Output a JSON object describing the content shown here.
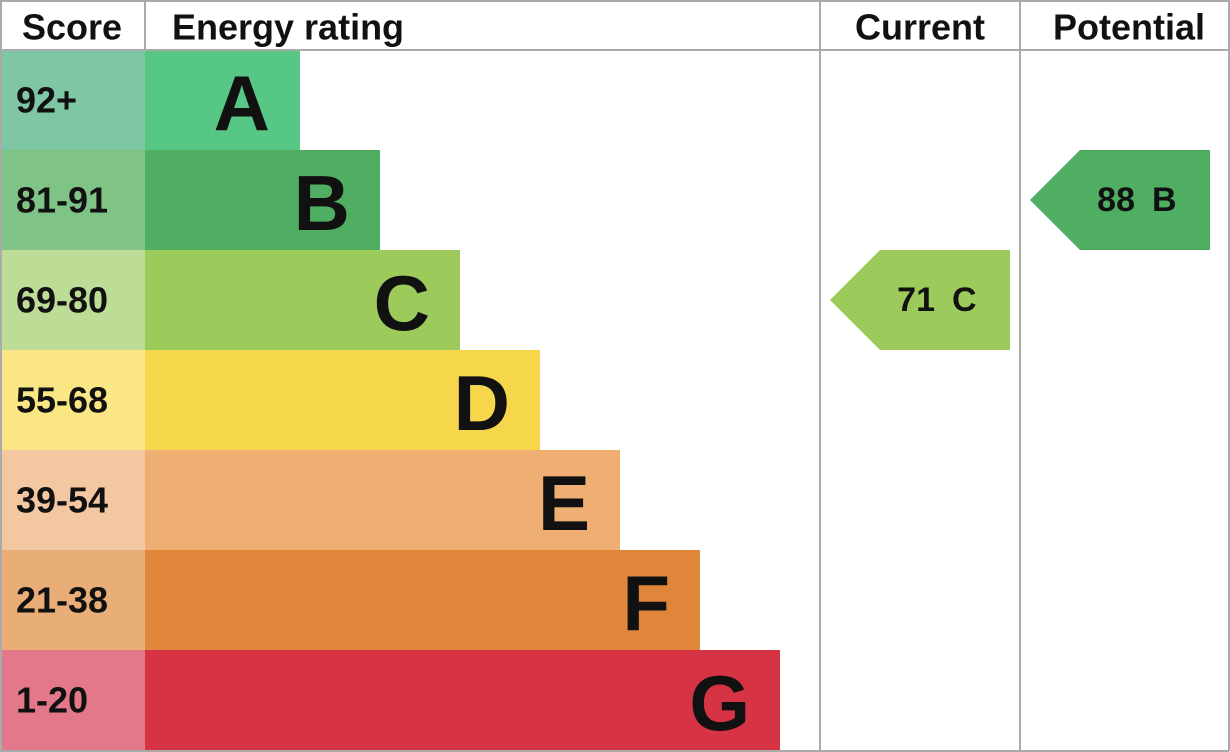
{
  "header": {
    "score": "Score",
    "rating": "Energy rating",
    "current": "Current",
    "potential": "Potential"
  },
  "bands": [
    {
      "score": "92+",
      "letter": "A",
      "color": "#57c785",
      "score_color": "#7fc6a5"
    },
    {
      "score": "81-91",
      "letter": "B",
      "color": "#4fae62",
      "score_color": "#80c386"
    },
    {
      "score": "69-80",
      "letter": "C",
      "color": "#9ccb5c",
      "score_color": "#bddd96"
    },
    {
      "score": "55-68",
      "letter": "D",
      "color": "#f6d74b",
      "score_color": "#fbe685"
    },
    {
      "score": "39-54",
      "letter": "E",
      "color": "#efae72",
      "score_color": "#f3c7a1"
    },
    {
      "score": "21-38",
      "letter": "F",
      "color": "#df863b",
      "score_color": "#e9ad78"
    },
    {
      "score": "1-20",
      "letter": "G",
      "color": "#d63445",
      "score_color": "#e2788a"
    }
  ],
  "current": {
    "value": "71",
    "letter": "C",
    "band": 2
  },
  "potential": {
    "value": "88",
    "letter": "B",
    "band": 1
  }
}
